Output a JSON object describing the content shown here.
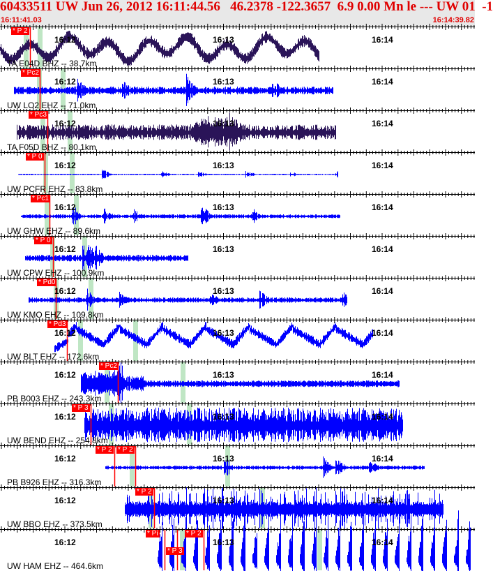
{
  "header": {
    "title": "60433511 UW Jun 26, 2012 16:11:44.56   46.2378 -122.3657  6.9 0.00 Mn le --- UW 01  -1",
    "start_time": "16:11:41.03",
    "end_time": "16:14:39.82"
  },
  "colors": {
    "header_text": "#e00000",
    "pick": "#ff0000",
    "band": "#bfe6c4",
    "trace_blue": "#0000ff",
    "trace_purple": "#2a1458"
  },
  "time_labels": [
    "16:12",
    "16:13",
    "16:14"
  ],
  "panels": [
    {
      "label": "TA E04D BHZ -- 38.7km",
      "color": "trace_purple",
      "picks": [
        {
          "text": "* P 2"
        }
      ]
    },
    {
      "label": "UW LO2 EHZ -- 71.0km",
      "color": "trace_blue",
      "picks": [
        {
          "text": "* Pc2"
        }
      ]
    },
    {
      "label": "TA F05D BHZ -- 80.1km",
      "color": "trace_purple",
      "picks": [
        {
          "text": "* Pc3"
        }
      ]
    },
    {
      "label": "UW PCFR EHZ -- 83.8km",
      "color": "trace_blue",
      "picks": [
        {
          "text": "* P 0"
        }
      ]
    },
    {
      "label": "UW GHW EHZ -- 89.6km",
      "color": "trace_blue",
      "picks": [
        {
          "text": "* Pc1"
        }
      ]
    },
    {
      "label": "UW CPW EHZ -- 100.9km",
      "color": "trace_blue",
      "picks": [
        {
          "text": "* P 0"
        }
      ]
    },
    {
      "label": "UW KMO EHZ -- 109.8km",
      "color": "trace_blue",
      "picks": [
        {
          "text": "* Pd0"
        }
      ]
    },
    {
      "label": "UW BLT EHZ -- 172.6km",
      "color": "trace_blue",
      "picks": [
        {
          "text": "* Pd3"
        }
      ]
    },
    {
      "label": "PB B003 EHZ -- 243.3km",
      "color": "trace_blue",
      "picks": [
        {
          "text": "* Pc2"
        }
      ]
    },
    {
      "label": "UW BEND EHZ -- 254.8km",
      "color": "trace_blue",
      "picks": [
        {
          "text": "* P 3"
        }
      ]
    },
    {
      "label": "PB B926 EHZ -- 316.3km",
      "color": "trace_blue",
      "picks": [
        {
          "text": "* P 2"
        },
        {
          "text": "* P 2"
        }
      ]
    },
    {
      "label": "UW BBO EHZ -- 373.5km",
      "color": "trace_blue",
      "picks": [
        {
          "text": "* P 2"
        }
      ]
    },
    {
      "label": "UW HAM EHZ -- 464.6km",
      "color": "trace_blue",
      "picks": [
        {
          "text": "* Pi"
        },
        {
          "text": "* P 3"
        },
        {
          "text": "* P 2"
        }
      ]
    }
  ]
}
